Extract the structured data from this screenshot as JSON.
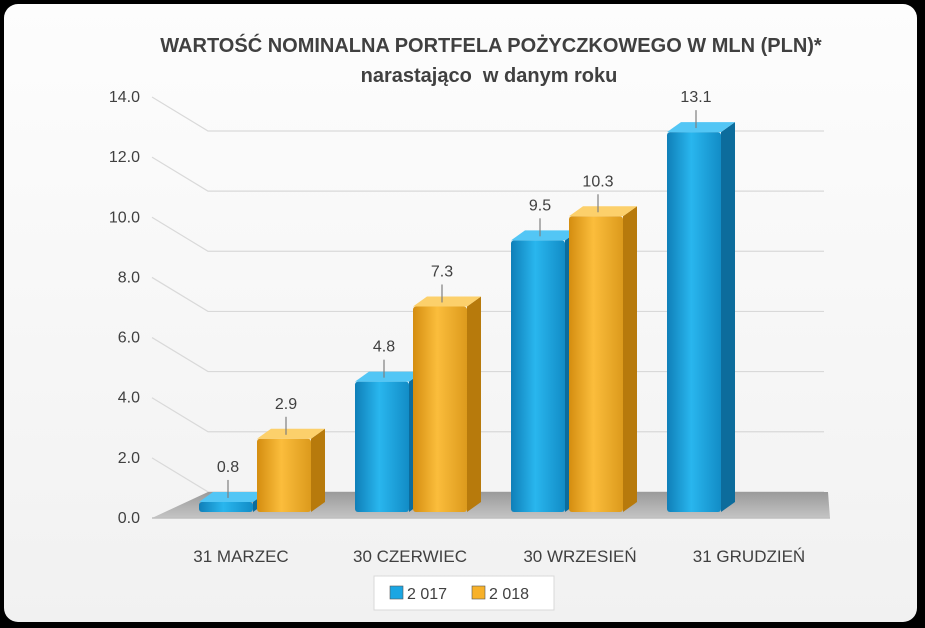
{
  "chart_data": {
    "type": "bar",
    "title": "WARTOŚĆ NOMINALNA PORTFELA POŻYCZKOWEGO W MLN (PLN)*",
    "subtitle": "narastająco  w danym roku",
    "categories": [
      "31 MARZEC",
      "30 CZERWIEC",
      "30 WRZESIEŃ",
      "31 GRUDZIEŃ"
    ],
    "series": [
      {
        "name": "2 017",
        "values": [
          0.8,
          4.8,
          9.5,
          13.1
        ],
        "labels": [
          "0.8",
          "4.8",
          "9.5",
          "13.1"
        ],
        "color": "#1aa6e3"
      },
      {
        "name": "2 018",
        "values": [
          2.9,
          7.3,
          10.3,
          null
        ],
        "labels": [
          "2.9",
          "7.3",
          "10.3",
          ""
        ],
        "color": "#f7b12a"
      }
    ],
    "ylim": [
      0,
      14
    ],
    "yticks": [
      "0.0",
      "2.0",
      "4.0",
      "6.0",
      "8.0",
      "10.0",
      "12.0",
      "14.0"
    ],
    "grid": true,
    "legend": "bottom"
  }
}
